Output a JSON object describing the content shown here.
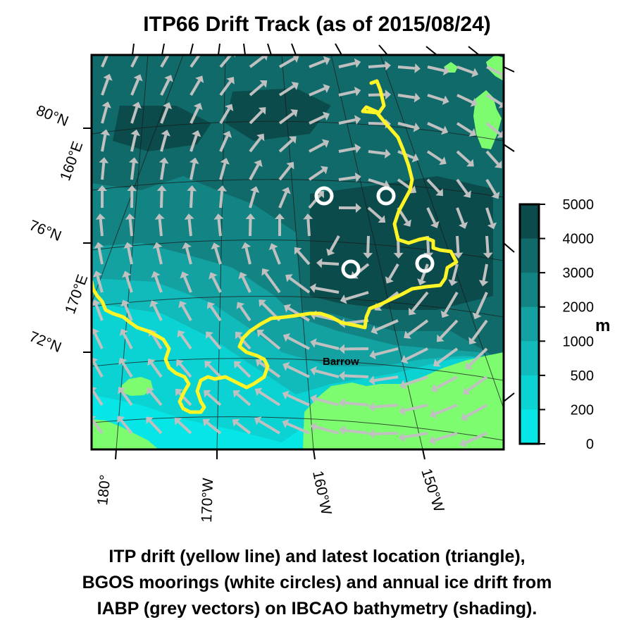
{
  "title": "ITP66 Drift Track (as of 2015/08/24)",
  "caption_lines": [
    "ITP drift (yellow line) and latest location (triangle),",
    "BGOS moorings (white circles) and annual ice drift from",
    "IABP (grey vectors) on IBCAO bathymetry (shading)."
  ],
  "map": {
    "place_label": "Barrow",
    "latitude_labels": [
      "80°N",
      "76°N",
      "72°N"
    ],
    "left_longitude_labels": [
      "160°E",
      "170°E"
    ],
    "bottom_longitude_labels": [
      "180°",
      "170°W",
      "160°W",
      "150°W"
    ]
  },
  "colorbar": {
    "unit": "m",
    "ticks": [
      "5000",
      "4000",
      "3000",
      "2000",
      "1000",
      "500",
      "200",
      "0"
    ],
    "colors": [
      "#0b4b4b",
      "#116a6a",
      "#128484",
      "#14a1a1",
      "#11bbbb",
      "#0bd3d3",
      "#06e6e6"
    ]
  },
  "colors": {
    "land": "#7dfc6f",
    "track": "#fff426",
    "vectors": "#c0c0c0",
    "moorings": "#ffffff"
  }
}
